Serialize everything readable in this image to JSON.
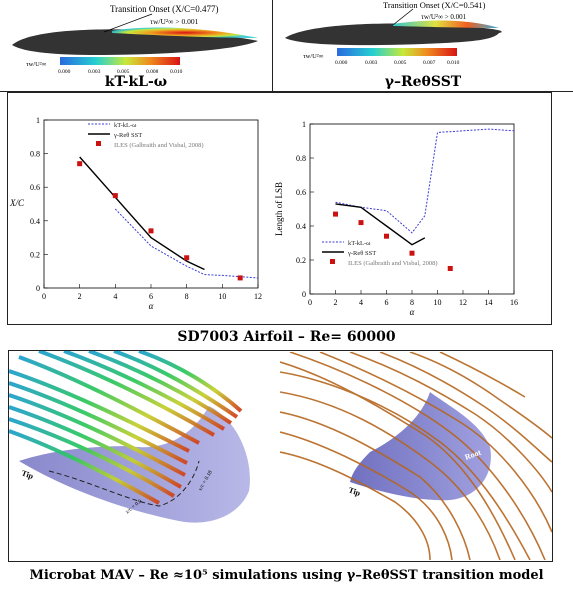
{
  "top_left": {
    "annotation": "Transition Onset (X/C=0.477)",
    "criterion": "τw/U²∞ > 0.001",
    "scale_label": "τw/U²∞",
    "scale_ticks": [
      "0.000",
      "0.003",
      "0.005",
      "0.008",
      "0.010"
    ],
    "model_label": "kT-kL-ω"
  },
  "top_right": {
    "annotation": "Transition Onset (X/C=0.541)",
    "criterion": "τw/U²∞ > 0.001",
    "scale_label": "τw/U²∞",
    "scale_ticks": [
      "0.000",
      "0.003",
      "0.005",
      "0.007",
      "0.010"
    ],
    "model_label": "γ–ReθSST"
  },
  "caption_mid": "SD7003 Airfoil – Re= 60000",
  "caption_bottom": "Microbat MAV – Re ≈10⁵   simulations using  γ–ReθSST transition model",
  "mav_labels": {
    "tip": "Tip",
    "root": "Root",
    "left_contour_a": "x/c = 0.6",
    "left_contour_b": "x/c = 0.18"
  },
  "chart_data": [
    {
      "type": "line",
      "title": "",
      "xlabel": "α",
      "ylabel": "X/C",
      "xlim": [
        0,
        12
      ],
      "ylim": [
        0,
        1
      ],
      "xticks": [
        "0",
        "2",
        "4",
        "6",
        "8",
        "10",
        "12"
      ],
      "yticks": [
        "0",
        "0.2",
        "0.4",
        "0.6",
        "0.8",
        "1"
      ],
      "legend_position": "top-right",
      "series": [
        {
          "name": "kT-kL-ω",
          "style": "dotted",
          "color": "#3b3bd6",
          "x": [
            4,
            6,
            8,
            9,
            10,
            12
          ],
          "y": [
            0.47,
            0.25,
            0.13,
            0.08,
            0.075,
            0.06
          ]
        },
        {
          "name": "γ-Reθ SST",
          "style": "solid",
          "color": "#000000",
          "x": [
            2,
            4,
            6,
            8,
            9
          ],
          "y": [
            0.78,
            0.54,
            0.3,
            0.16,
            0.11
          ]
        },
        {
          "name": "ILES (Galbraith and Visbal, 2008)",
          "style": "marker",
          "color": "#cc1111",
          "x": [
            2,
            4,
            6,
            8,
            11
          ],
          "y": [
            0.74,
            0.55,
            0.34,
            0.18,
            0.06
          ]
        }
      ]
    },
    {
      "type": "line",
      "title": "",
      "xlabel": "α",
      "ylabel": "Length of LSB",
      "xlim": [
        0,
        16
      ],
      "ylim": [
        0,
        1
      ],
      "xticks": [
        "0",
        "2",
        "4",
        "6",
        "8",
        "10",
        "12",
        "14",
        "16"
      ],
      "yticks": [
        "0",
        "0.2",
        "0.4",
        "0.6",
        "0.8",
        "1"
      ],
      "legend_position": "bottom-right",
      "series": [
        {
          "name": "kT-kL-ω",
          "style": "dotted",
          "color": "#3b3bd6",
          "x": [
            2,
            4,
            6,
            8,
            9,
            10,
            12,
            14,
            16
          ],
          "y": [
            0.54,
            0.51,
            0.49,
            0.36,
            0.46,
            0.95,
            0.96,
            0.97,
            0.96
          ]
        },
        {
          "name": "γ-Reθ SST",
          "style": "solid",
          "color": "#000000",
          "x": [
            2,
            4,
            6,
            8,
            9
          ],
          "y": [
            0.53,
            0.51,
            0.4,
            0.29,
            0.33
          ]
        },
        {
          "name": "ILES (Galbraith and Visbal, 2008)",
          "style": "marker",
          "color": "#cc1111",
          "x": [
            2,
            4,
            6,
            8,
            11
          ],
          "y": [
            0.47,
            0.42,
            0.34,
            0.24,
            0.15
          ]
        }
      ]
    }
  ]
}
